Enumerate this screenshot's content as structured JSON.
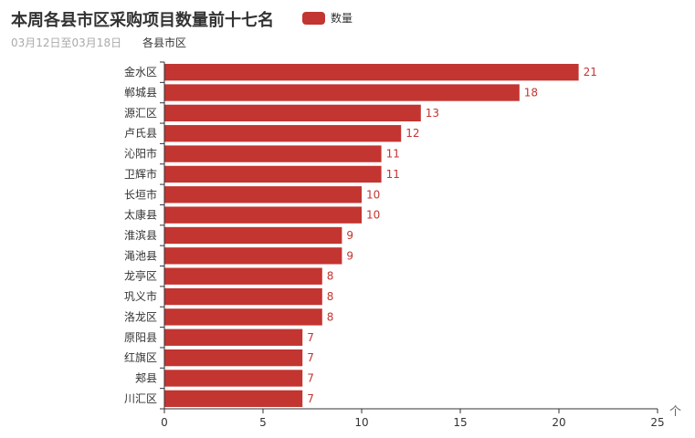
{
  "title": "本周各县市区采购项目数量前十七名",
  "subtitle": "03月12日至03月18日",
  "legend": {
    "label": "数量"
  },
  "toolbox": {
    "icon": "arrow-up-icon",
    "glyph": "个"
  },
  "colors": {
    "bar": "#c23531",
    "axis": "#333333",
    "label": "#c23531"
  },
  "chart_data": {
    "type": "bar",
    "orientation": "horizontal",
    "ylabel": "各县市区",
    "categories": [
      "金水区",
      "郸城县",
      "源汇区",
      "卢氏县",
      "沁阳市",
      "卫辉市",
      "长垣市",
      "太康县",
      "淮滨县",
      "渑池县",
      "龙亭区",
      "巩义市",
      "洛龙区",
      "原阳县",
      "红旗区",
      "郏县",
      "川汇区"
    ],
    "series": [
      {
        "name": "数量",
        "values": [
          21,
          18,
          13,
          12,
          11,
          11,
          10,
          10,
          9,
          9,
          8,
          8,
          8,
          7,
          7,
          7,
          7
        ]
      }
    ],
    "xlim": [
      0,
      25
    ],
    "xticks": [
      0,
      5,
      10,
      15,
      20,
      25
    ],
    "grid": false,
    "legend_position": "top"
  }
}
